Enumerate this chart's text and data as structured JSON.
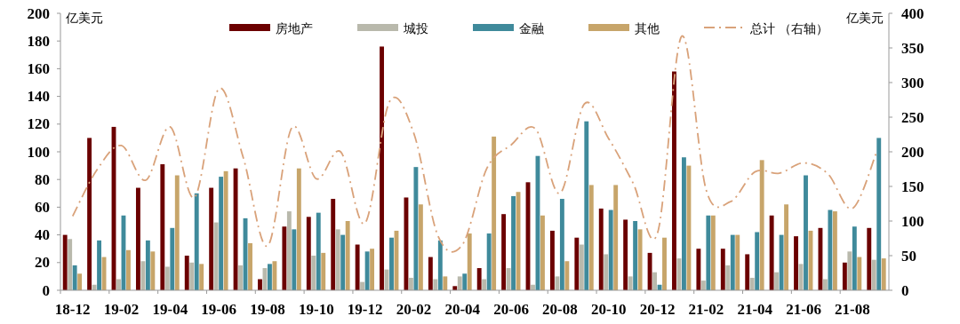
{
  "chart_data": {
    "type": "bar",
    "ylabel": "亿美元",
    "y2label": "亿美元",
    "categories": [
      "18-12",
      null,
      "19-02",
      null,
      "19-04",
      null,
      "19-06",
      null,
      "19-08",
      null,
      "19-10",
      null,
      "19-12",
      null,
      "20-02",
      null,
      "20-04",
      null,
      "20-06",
      null,
      "20-08",
      null,
      "20-10",
      null,
      "20-12",
      null,
      "21-02",
      null,
      "21-04",
      null,
      "21-06",
      null,
      "21-08",
      null
    ],
    "series": [
      {
        "name": "房地产",
        "color": "#6b0000",
        "values": [
          40,
          110,
          118,
          74,
          91,
          25,
          74,
          88,
          8,
          46,
          53,
          66,
          33,
          176,
          67,
          24,
          3,
          16,
          55,
          78,
          43,
          38,
          59,
          51,
          27,
          158,
          30,
          30,
          26,
          54,
          39,
          45,
          20,
          45
        ]
      },
      {
        "name": "城投",
        "color": "#b9b9ac",
        "values": [
          37,
          4,
          8,
          21,
          17,
          20,
          49,
          18,
          16,
          57,
          25,
          44,
          6,
          15,
          9,
          8,
          10,
          8,
          16,
          4,
          10,
          33,
          26,
          10,
          13,
          23,
          7,
          18,
          9,
          13,
          19,
          8,
          28,
          22
        ]
      },
      {
        "name": "金融",
        "color": "#3f8a9b",
        "values": [
          18,
          36,
          54,
          36,
          45,
          70,
          82,
          52,
          19,
          44,
          56,
          40,
          28,
          38,
          89,
          36,
          12,
          41,
          68,
          97,
          66,
          122,
          58,
          50,
          4,
          96,
          54,
          40,
          42,
          40,
          83,
          58,
          46,
          110
        ]
      },
      {
        "name": "其他",
        "color": "#c7a56a",
        "values": [
          12,
          24,
          29,
          28,
          83,
          19,
          86,
          34,
          21,
          88,
          27,
          50,
          30,
          43,
          62,
          10,
          41,
          111,
          71,
          54,
          21,
          76,
          76,
          44,
          38,
          90,
          54,
          40,
          94,
          62,
          43,
          57,
          24,
          23
        ]
      },
      {
        "name": "总计 （右轴）",
        "type": "line",
        "axis": "y2",
        "color": "#d9a27a",
        "line_style": "dashed",
        "values": [
          107,
          174,
          209,
          159,
          236,
          134,
          291,
          192,
          64,
          235,
          161,
          200,
          97,
          272,
          227,
          78,
          66,
          176,
          210,
          233,
          140,
          269,
          219,
          155,
          82,
          367,
          145,
          128,
          171,
          169,
          184,
          168,
          118,
          200
        ]
      }
    ],
    "ylim": [
      0,
      200
    ],
    "yticks": [
      0,
      20,
      40,
      60,
      80,
      100,
      120,
      140,
      160,
      180,
      200
    ],
    "y2lim": [
      0,
      400
    ],
    "y2ticks": [
      0,
      50,
      100,
      150,
      200,
      250,
      300,
      350,
      400
    ],
    "legend": "top",
    "grid": false
  }
}
